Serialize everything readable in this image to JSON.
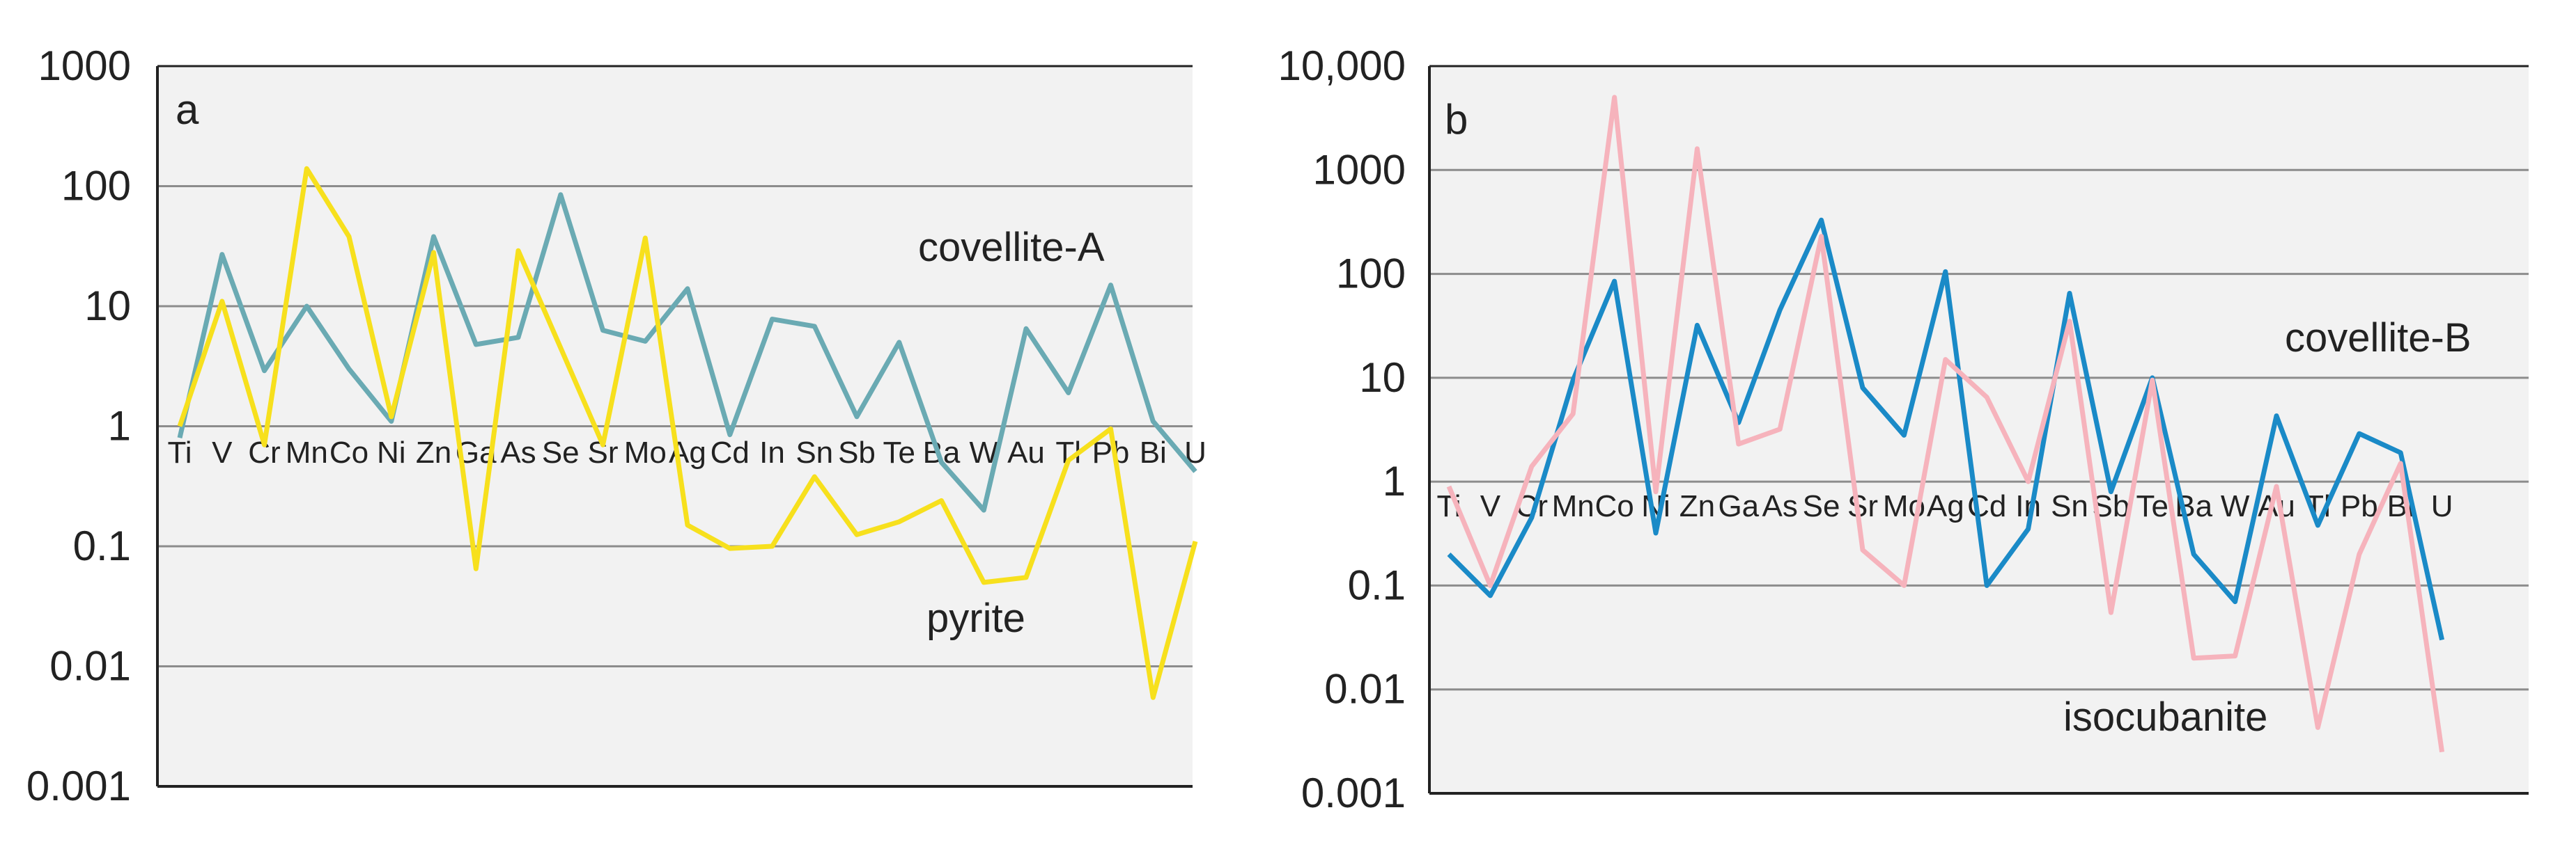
{
  "chart_data": [
    {
      "type": "line",
      "panel_label": "a",
      "y_scale": "log",
      "ylim": [
        0.001,
        1000
      ],
      "y_ticks": [
        "0.001",
        "0.01",
        "0.1",
        "1",
        "10",
        "100",
        "1000"
      ],
      "y_tick_values": [
        0.001,
        0.01,
        0.1,
        1,
        10,
        100,
        1000
      ],
      "grid": "horizontal",
      "plot_background": "#f2f2f2",
      "categories": [
        "Ti",
        "V",
        "Cr",
        "Mn",
        "Co",
        "Ni",
        "Zn",
        "Ga",
        "As",
        "Se",
        "Sr",
        "Mo",
        "Ag",
        "Cd",
        "In",
        "Sn",
        "Sb",
        "Te",
        "Ba",
        "W",
        "Au",
        "Tl",
        "Pb",
        "Bi",
        "U"
      ],
      "series": [
        {
          "name": "covellite-A",
          "color": "#6aaab3",
          "values": [
            0.8,
            27,
            2.9,
            10,
            3,
            1.1,
            38,
            4.8,
            5.5,
            85,
            6.3,
            5.1,
            14,
            0.85,
            7.8,
            6.8,
            1.2,
            5,
            0.5,
            0.2,
            6.5,
            1.9,
            15,
            1.1,
            0.42
          ]
        },
        {
          "name": "pyrite",
          "color": "#f7e01d",
          "values": [
            1,
            11,
            0.7,
            140,
            38,
            1.2,
            28,
            0.065,
            29,
            4.5,
            0.7,
            37,
            0.15,
            0.096,
            0.1,
            0.38,
            0.125,
            0.16,
            0.24,
            0.05,
            0.055,
            0.52,
            0.95,
            0.0055,
            0.11
          ]
        }
      ]
    },
    {
      "type": "line",
      "panel_label": "b",
      "y_scale": "log",
      "ylim": [
        0.001,
        10000
      ],
      "y_ticks": [
        "0.001",
        "0.01",
        "0.1",
        "1",
        "10",
        "100",
        "1000",
        "10,000"
      ],
      "y_tick_values": [
        0.001,
        0.01,
        0.1,
        1,
        10,
        100,
        1000,
        10000
      ],
      "grid": "horizontal",
      "plot_background": "#f2f2f2",
      "categories": [
        "Ti",
        "V",
        "Cr",
        "Mn",
        "Co",
        "Ni",
        "Zn",
        "Ga",
        "As",
        "Se",
        "Sr",
        "Mo",
        "Ag",
        "Cd",
        "In",
        "Sn",
        "Sb",
        "Te",
        "Ba",
        "W",
        "Au",
        "Tl",
        "Pb",
        "Bi",
        "U"
      ],
      "series": [
        {
          "name": "covellite-B",
          "color": "#1a8ac7",
          "values": [
            0.2,
            0.08,
            0.45,
            9.5,
            85,
            0.32,
            32,
            3.7,
            45,
            330,
            8,
            2.8,
            105,
            0.1,
            0.35,
            65,
            0.8,
            10,
            0.2,
            0.07,
            4.3,
            0.38,
            2.9,
            1.9,
            0.03
          ]
        },
        {
          "name": "isocubanite",
          "color": "#f6b3bc",
          "values": [
            0.9,
            0.1,
            1.4,
            4.5,
            5000,
            0.8,
            1600,
            2.3,
            3.2,
            230,
            0.22,
            0.1,
            15,
            6.5,
            1,
            35,
            0.055,
            9.5,
            0.02,
            0.021,
            0.9,
            0.0043,
            0.2,
            1.5,
            0.0025
          ]
        }
      ]
    }
  ]
}
